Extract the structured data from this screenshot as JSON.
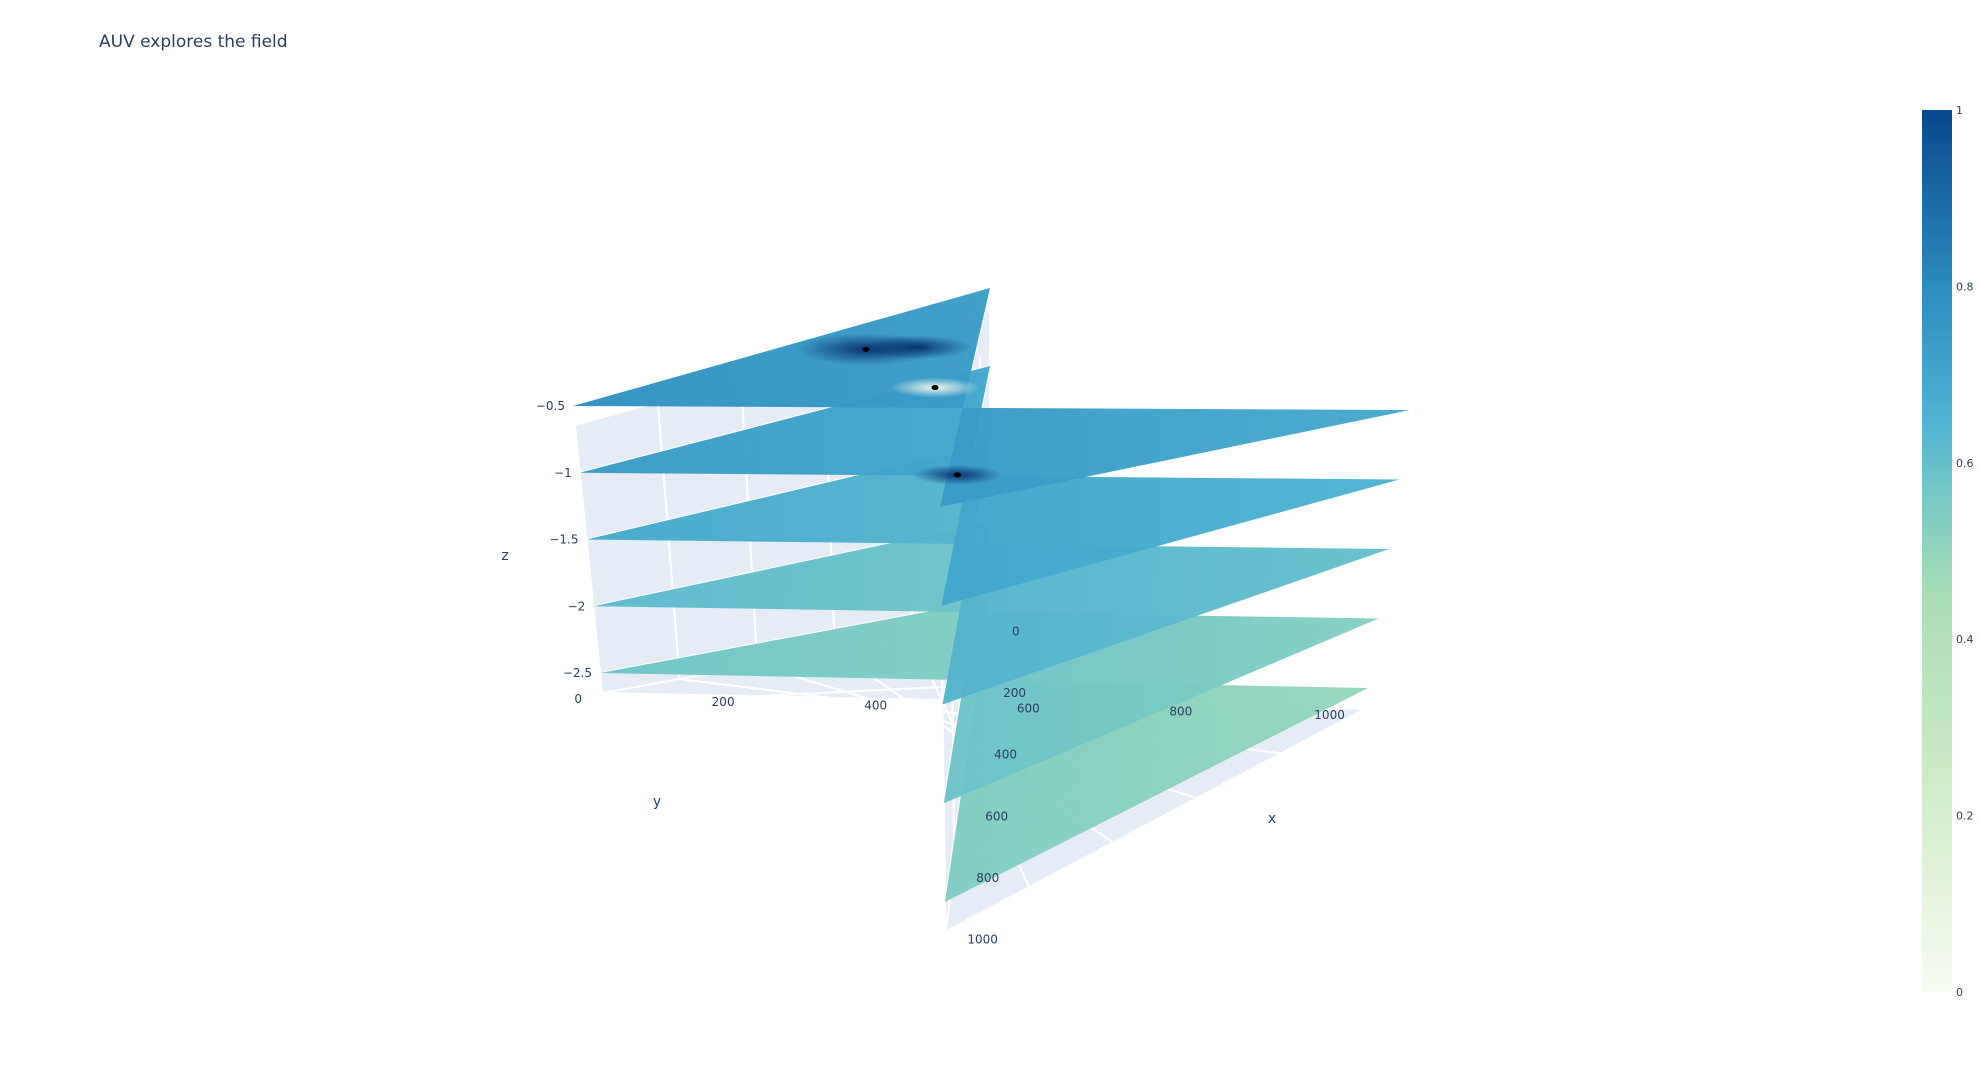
{
  "chart_data": {
    "type": "surface",
    "title": "AUV explores the field",
    "xlabel": "x",
    "ylabel": "y",
    "zlabel": "z",
    "x_range": [
      0,
      1000
    ],
    "y_range": [
      0,
      1000
    ],
    "z_range": [
      -2.5,
      -0.5
    ],
    "x_ticks": [
      "0",
      "200",
      "400",
      "600",
      "800",
      "1000"
    ],
    "y_ticks": [
      "0",
      "200",
      "400",
      "600",
      "800",
      "1000"
    ],
    "z_ticks": [
      "−2.5",
      "−2",
      "−1.5",
      "−1",
      "−0.5"
    ],
    "layers": [
      {
        "z": -0.5,
        "base_value": 0.72
      },
      {
        "z": -1.0,
        "base_value": 0.68
      },
      {
        "z": -1.5,
        "base_value": 0.63
      },
      {
        "z": -2.0,
        "base_value": 0.56
      },
      {
        "z": -2.5,
        "base_value": 0.52
      }
    ],
    "colorscale": "YlGnBu",
    "color_range": [
      0,
      1
    ],
    "colorbar_ticks": [
      "0",
      "0.2",
      "0.4",
      "0.6",
      "0.8",
      "1"
    ],
    "grid": true
  }
}
